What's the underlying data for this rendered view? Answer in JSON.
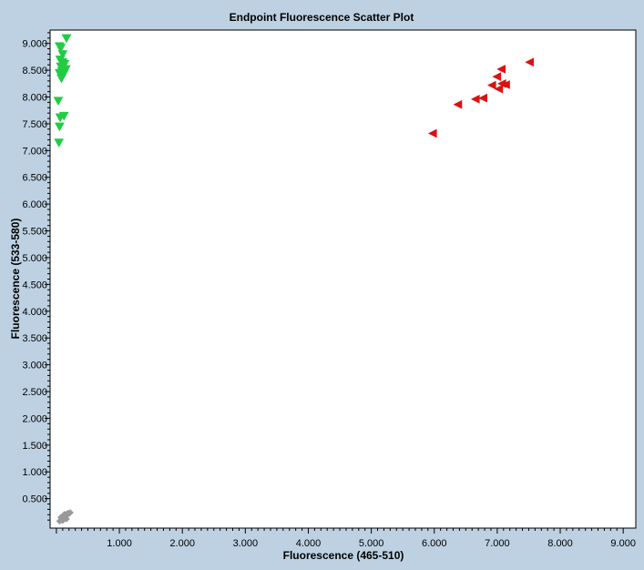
{
  "chart_data": {
    "type": "scatter",
    "title": "Endpoint Fluorescence Scatter Plot",
    "xlabel": "Fluorescence (465-510)",
    "ylabel": "Fluorescence (533-580)",
    "xlim": [
      -0.1,
      9.2
    ],
    "ylim": [
      -0.05,
      9.25
    ],
    "x_ticks": [
      "1.000",
      "2.000",
      "3.000",
      "4.000",
      "5.000",
      "6.000",
      "7.000",
      "8.000",
      "9.000"
    ],
    "y_ticks": [
      "0.500",
      "1.000",
      "1.500",
      "2.000",
      "2.500",
      "3.000",
      "3.500",
      "4.000",
      "4.500",
      "5.000",
      "5.500",
      "6.000",
      "6.500",
      "7.000",
      "7.500",
      "8.000",
      "8.500",
      "9.000"
    ],
    "grid": false,
    "series": [
      {
        "marker": "triangle-down",
        "color": "#22cc44",
        "points": [
          [
            0.16,
            9.1
          ],
          [
            0.05,
            8.95
          ],
          [
            0.07,
            8.92
          ],
          [
            0.1,
            8.8
          ],
          [
            0.06,
            8.7
          ],
          [
            0.1,
            8.65
          ],
          [
            0.13,
            8.62
          ],
          [
            0.07,
            8.57
          ],
          [
            0.15,
            8.52
          ],
          [
            0.09,
            8.48
          ],
          [
            0.05,
            8.45
          ],
          [
            0.12,
            8.44
          ],
          [
            0.08,
            8.35
          ],
          [
            0.03,
            7.93
          ],
          [
            0.12,
            7.65
          ],
          [
            0.06,
            7.62
          ],
          [
            0.05,
            7.45
          ],
          [
            0.04,
            7.15
          ]
        ]
      },
      {
        "marker": "triangle-left",
        "color": "#dd1111",
        "points": [
          [
            7.52,
            8.65
          ],
          [
            7.07,
            8.52
          ],
          [
            7.0,
            8.38
          ],
          [
            7.08,
            8.25
          ],
          [
            7.14,
            8.23
          ],
          [
            6.92,
            8.22
          ],
          [
            7.03,
            8.15
          ],
          [
            6.78,
            7.98
          ],
          [
            6.66,
            7.96
          ],
          [
            6.38,
            7.86
          ],
          [
            5.98,
            7.32
          ]
        ]
      },
      {
        "marker": "diamond",
        "color": "#999999",
        "points": [
          [
            0.05,
            0.08
          ],
          [
            0.08,
            0.11
          ],
          [
            0.11,
            0.14
          ],
          [
            0.14,
            0.17
          ],
          [
            0.17,
            0.2
          ],
          [
            0.2,
            0.22
          ],
          [
            0.12,
            0.19
          ],
          [
            0.07,
            0.15
          ],
          [
            0.16,
            0.12
          ],
          [
            0.1,
            0.09
          ],
          [
            0.18,
            0.23
          ],
          [
            0.13,
            0.21
          ],
          [
            0.22,
            0.24
          ]
        ]
      }
    ]
  }
}
